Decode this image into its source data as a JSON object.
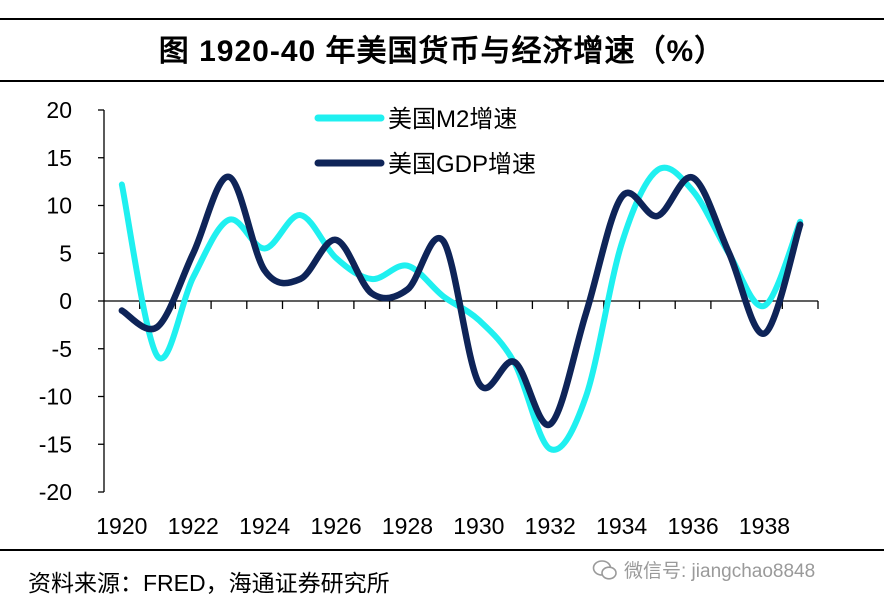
{
  "title": "图  1920-40 年美国货币与经济增速（%）",
  "source": "资料来源：FRED，海通证券研究所",
  "watermark": "微信号: jiangchao8848",
  "chart_data": {
    "type": "line",
    "title": "图  1920-40 年美国货币与经济增速（%）",
    "xlabel": "",
    "ylabel": "",
    "x": [
      1920,
      1921,
      1922,
      1923,
      1924,
      1925,
      1926,
      1927,
      1928,
      1929,
      1930,
      1931,
      1932,
      1933,
      1934,
      1935,
      1936,
      1937,
      1938,
      1939
    ],
    "x_tick_labels": [
      "1920",
      "1922",
      "1924",
      "1926",
      "1928",
      "1930",
      "1932",
      "1934",
      "1936",
      "1938"
    ],
    "y_ticks": [
      20,
      15,
      10,
      5,
      0,
      -5,
      -10,
      -15,
      -20
    ],
    "ylim": [
      -20,
      20
    ],
    "grid": false,
    "legend_position": "top-center",
    "series": [
      {
        "name": "美国M2增速",
        "color": "#1ff0f0",
        "values": [
          12.2,
          -5.8,
          2.5,
          8.5,
          5.5,
          9.0,
          4.5,
          2.3,
          3.7,
          0.5,
          -2.0,
          -6.5,
          -15.5,
          -10.0,
          6.0,
          13.7,
          11.5,
          5.0,
          -0.5,
          8.3
        ]
      },
      {
        "name": "美国GDP增速",
        "color": "#0e2458",
        "values": [
          -1.0,
          -2.7,
          5.0,
          13.0,
          3.2,
          2.3,
          6.4,
          0.8,
          1.2,
          6.3,
          -8.6,
          -6.4,
          -12.9,
          -1.3,
          10.9,
          8.9,
          12.9,
          5.1,
          -3.4,
          8.0
        ]
      }
    ]
  }
}
